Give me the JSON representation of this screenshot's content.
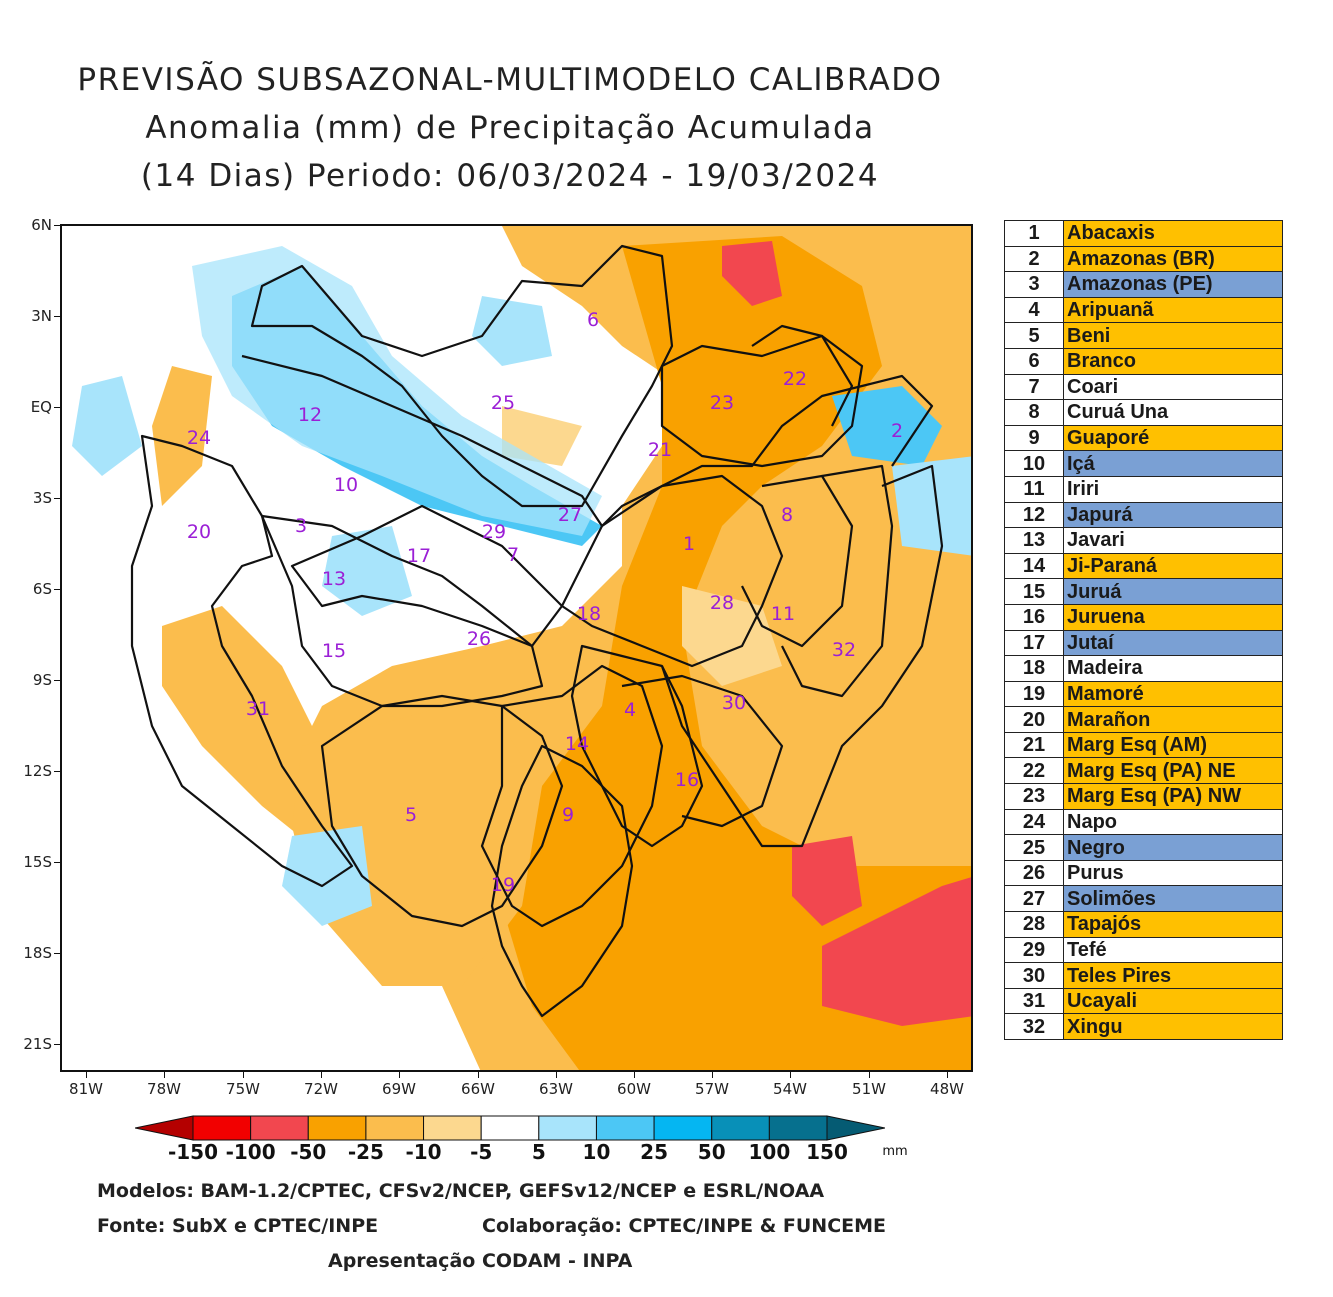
{
  "title": {
    "line1": "PREVISÃO SUBSAZONAL-MULTIMODELO CALIBRADO",
    "line2": "Anomalia (mm) de Precipitação Acumulada",
    "line3": "(14 Dias) Periodo: 06/03/2024 - 19/03/2024"
  },
  "axes": {
    "y_ticks": [
      "6N",
      "3N",
      "EQ",
      "3S",
      "6S",
      "9S",
      "12S",
      "15S",
      "18S",
      "21S"
    ],
    "x_ticks": [
      "81W",
      "78W",
      "75W",
      "72W",
      "69W",
      "66W",
      "63W",
      "60W",
      "57W",
      "54W",
      "51W",
      "48W"
    ]
  },
  "basin_labels": [
    "1",
    "2",
    "3",
    "4",
    "5",
    "6",
    "7",
    "8",
    "9",
    "10",
    "11",
    "12",
    "13",
    "14",
    "15",
    "16",
    "17",
    "18",
    "19",
    "20",
    "21",
    "22",
    "23",
    "24",
    "25",
    "26",
    "27",
    "28",
    "29",
    "30",
    "31",
    "32"
  ],
  "legend": [
    {
      "num": "1",
      "name": "Abacaxis",
      "status": "orange"
    },
    {
      "num": "2",
      "name": "Amazonas (BR)",
      "status": "orange"
    },
    {
      "num": "3",
      "name": "Amazonas (PE)",
      "status": "blue"
    },
    {
      "num": "4",
      "name": "Aripuanã",
      "status": "orange"
    },
    {
      "num": "5",
      "name": "Beni",
      "status": "orange"
    },
    {
      "num": "6",
      "name": "Branco",
      "status": "orange"
    },
    {
      "num": "7",
      "name": "Coari",
      "status": "white"
    },
    {
      "num": "8",
      "name": "Curuá Una",
      "status": "white"
    },
    {
      "num": "9",
      "name": "Guaporé",
      "status": "orange"
    },
    {
      "num": "10",
      "name": "Içá",
      "status": "blue"
    },
    {
      "num": "11",
      "name": "Iriri",
      "status": "white"
    },
    {
      "num": "12",
      "name": "Japurá",
      "status": "blue"
    },
    {
      "num": "13",
      "name": "Javari",
      "status": "white"
    },
    {
      "num": "14",
      "name": "Ji-Paraná",
      "status": "orange"
    },
    {
      "num": "15",
      "name": "Juruá",
      "status": "blue"
    },
    {
      "num": "16",
      "name": "Juruena",
      "status": "orange"
    },
    {
      "num": "17",
      "name": "Jutaí",
      "status": "blue"
    },
    {
      "num": "18",
      "name": "Madeira",
      "status": "white"
    },
    {
      "num": "19",
      "name": "Mamoré",
      "status": "orange"
    },
    {
      "num": "20",
      "name": "Marañon",
      "status": "orange"
    },
    {
      "num": "21",
      "name": "Marg Esq (AM)",
      "status": "orange"
    },
    {
      "num": "22",
      "name": "Marg Esq (PA) NE",
      "status": "orange"
    },
    {
      "num": "23",
      "name": "Marg Esq (PA) NW",
      "status": "orange"
    },
    {
      "num": "24",
      "name": "Napo",
      "status": "white"
    },
    {
      "num": "25",
      "name": "Negro",
      "status": "blue"
    },
    {
      "num": "26",
      "name": "Purus",
      "status": "white"
    },
    {
      "num": "27",
      "name": "Solimões",
      "status": "blue"
    },
    {
      "num": "28",
      "name": "Tapajós",
      "status": "orange"
    },
    {
      "num": "29",
      "name": "Tefé",
      "status": "white"
    },
    {
      "num": "30",
      "name": "Teles Pires",
      "status": "orange"
    },
    {
      "num": "31",
      "name": "Ucayali",
      "status": "orange"
    },
    {
      "num": "32",
      "name": "Xingu",
      "status": "orange"
    }
  ],
  "legend_colors": {
    "orange": "#ffc000",
    "blue": "#7aa0d4",
    "white": "#ffffff"
  },
  "colorbar": {
    "labels": [
      "-150",
      "-100",
      "-50",
      "-25",
      "-10",
      "-5",
      "5",
      "10",
      "25",
      "50",
      "100",
      "150"
    ],
    "unit": "mm",
    "colors": [
      "#b40000",
      "#f20000",
      "#f2474f",
      "#f9a100",
      "#fbbd4d",
      "#fcd88f",
      "#ffffff",
      "#a8e4fb",
      "#4cc7f5",
      "#05b6f2",
      "#0890b8",
      "#06708e",
      "#055b73"
    ]
  },
  "footer": {
    "models": "Modelos: BAM-1.2/CPTEC, CFSv2/NCEP, GEFSv12/NCEP e ESRL/NOAA",
    "source": "Fonte: SubX e CPTEC/INPE",
    "collab": "Colaboração: CPTEC/INPE & FUNCEME",
    "presentation": "Apresentação CODAM - INPA"
  }
}
